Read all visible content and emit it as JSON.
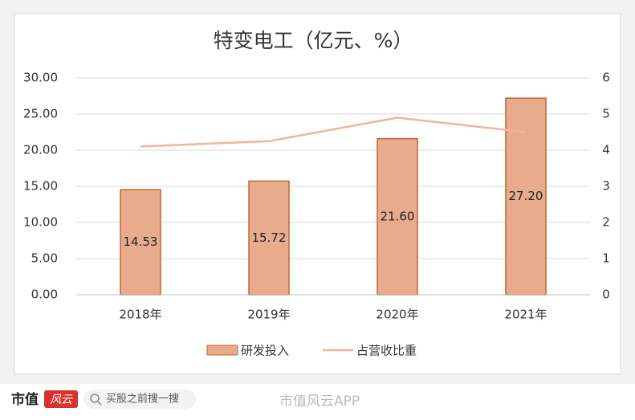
{
  "chart_data": {
    "type": "bar",
    "title": "特变电工（亿元、%）",
    "categories": [
      "2018年",
      "2019年",
      "2020年",
      "2021年"
    ],
    "series": [
      {
        "name": "研发投入",
        "type": "bar",
        "color": "#e9ab8e",
        "values": [
          14.53,
          15.72,
          21.6,
          27.2
        ],
        "value_labels": [
          "14.53",
          "15.72",
          "21.60",
          "27.20"
        ]
      },
      {
        "name": "占营收比重",
        "type": "line",
        "axis": "y2",
        "color": "#f4b49a",
        "values": [
          4.1,
          4.25,
          4.9,
          4.5
        ]
      }
    ],
    "ylim": [
      0,
      30
    ],
    "yticks": [
      {
        "value": 0,
        "label": "0.00"
      },
      {
        "value": 5,
        "label": "5.00"
      },
      {
        "value": 10,
        "label": "10.00"
      },
      {
        "value": 15,
        "label": "15.00"
      },
      {
        "value": 20,
        "label": "20.00"
      },
      {
        "value": 25,
        "label": "25.00"
      },
      {
        "value": 30,
        "label": "30.00"
      }
    ],
    "y2lim": [
      0,
      6
    ],
    "y2ticks": [
      0,
      1,
      2,
      3,
      4,
      5,
      6
    ],
    "grid": true,
    "legend": "bottom"
  },
  "footer": {
    "brand": "市值",
    "brand_logo": "风云",
    "search": "买股之前搜一搜",
    "watermark": "市值风云APP"
  }
}
